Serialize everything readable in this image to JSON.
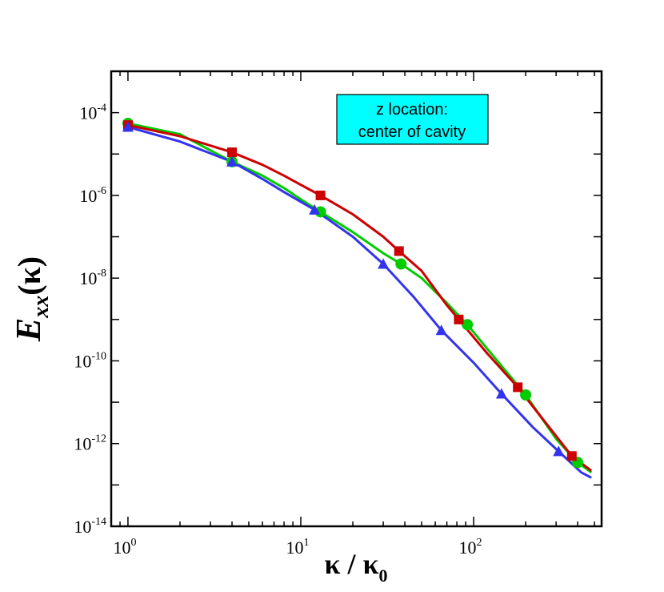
{
  "chart_data": {
    "type": "line",
    "xscale": "log",
    "yscale": "log",
    "xlim": [
      0.8,
      550
    ],
    "ylim": [
      1e-14,
      0.001
    ],
    "xticks": [
      {
        "value": 1,
        "base": "10",
        "exp": "0"
      },
      {
        "value": 10,
        "base": "10",
        "exp": "1"
      },
      {
        "value": 100,
        "base": "10",
        "exp": "2"
      }
    ],
    "yticks": [
      {
        "value": 1e-14,
        "base": "10",
        "exp": "-14"
      },
      {
        "value": 1e-12,
        "base": "10",
        "exp": "-12"
      },
      {
        "value": 1e-10,
        "base": "10",
        "exp": "-10"
      },
      {
        "value": 1e-08,
        "base": "10",
        "exp": "-8"
      },
      {
        "value": 1e-06,
        "base": "10",
        "exp": "-6"
      },
      {
        "value": 0.0001,
        "base": "10",
        "exp": "-4"
      }
    ],
    "xlabel": {
      "main": "κ / κ",
      "sub": "0"
    },
    "ylabel": {
      "main": "E",
      "sub": "xx",
      "rest": "(κ)"
    },
    "annotation": {
      "lines": [
        "z location:",
        "center of cavity"
      ],
      "bg": "#00ffff"
    },
    "series": [
      {
        "name": "green-circles",
        "color": "#00cc00",
        "marker": "circle",
        "x": [
          1,
          2,
          4,
          6,
          8,
          10,
          13,
          20,
          30,
          38,
          50,
          70,
          92,
          130,
          200,
          300,
          400,
          480
        ],
        "y": [
          5.5e-05,
          3e-05,
          6.5e-06,
          3e-06,
          1.5e-06,
          8e-07,
          4e-07,
          1.3e-07,
          4e-08,
          2.2e-08,
          1e-08,
          2.5e-09,
          7.5e-10,
          1.3e-10,
          1.5e-11,
          1.3e-12,
          3.5e-13,
          2e-13
        ],
        "marker_x": [
          1,
          4,
          13,
          38,
          92,
          200,
          400
        ],
        "marker_y": [
          5.5e-05,
          6.5e-06,
          4e-07,
          2.2e-08,
          7.5e-10,
          1.5e-11,
          3.5e-13
        ]
      },
      {
        "name": "red-squares",
        "color": "#cc0000",
        "marker": "square",
        "x": [
          1,
          2,
          4,
          6,
          8,
          10,
          13,
          20,
          30,
          37,
          50,
          70,
          82,
          120,
          180,
          250,
          370,
          480
        ],
        "y": [
          5e-05,
          2.7e-05,
          1.1e-05,
          5.5e-06,
          3e-06,
          1.8e-06,
          1e-06,
          3.5e-07,
          1e-07,
          4.5e-08,
          1.5e-08,
          2.2e-09,
          1e-09,
          1.5e-10,
          2.3e-11,
          4e-12,
          5e-13,
          2.2e-13
        ],
        "marker_x": [
          1,
          4,
          13,
          37,
          82,
          180,
          370
        ],
        "marker_y": [
          5e-05,
          1.1e-05,
          1e-06,
          4.5e-08,
          1e-09,
          2.3e-11,
          5e-13
        ]
      },
      {
        "name": "blue-triangles",
        "color": "#3333ee",
        "marker": "triangle",
        "x": [
          1,
          2,
          4,
          6,
          8,
          12,
          20,
          30,
          45,
          65,
          100,
          145,
          220,
          310,
          420,
          480
        ],
        "y": [
          4.5e-05,
          2e-05,
          6.5e-06,
          2.5e-06,
          1.2e-06,
          4.5e-07,
          1e-07,
          2.2e-08,
          3.5e-09,
          5.5e-10,
          9e-11,
          1.6e-11,
          2.5e-12,
          6.5e-13,
          2e-13,
          1.5e-13
        ],
        "marker_x": [
          1,
          4,
          12,
          30,
          65,
          145,
          310
        ],
        "marker_y": [
          4.5e-05,
          6.5e-06,
          4.5e-07,
          2.2e-08,
          5.5e-10,
          1.6e-11,
          6.5e-13
        ]
      }
    ]
  }
}
